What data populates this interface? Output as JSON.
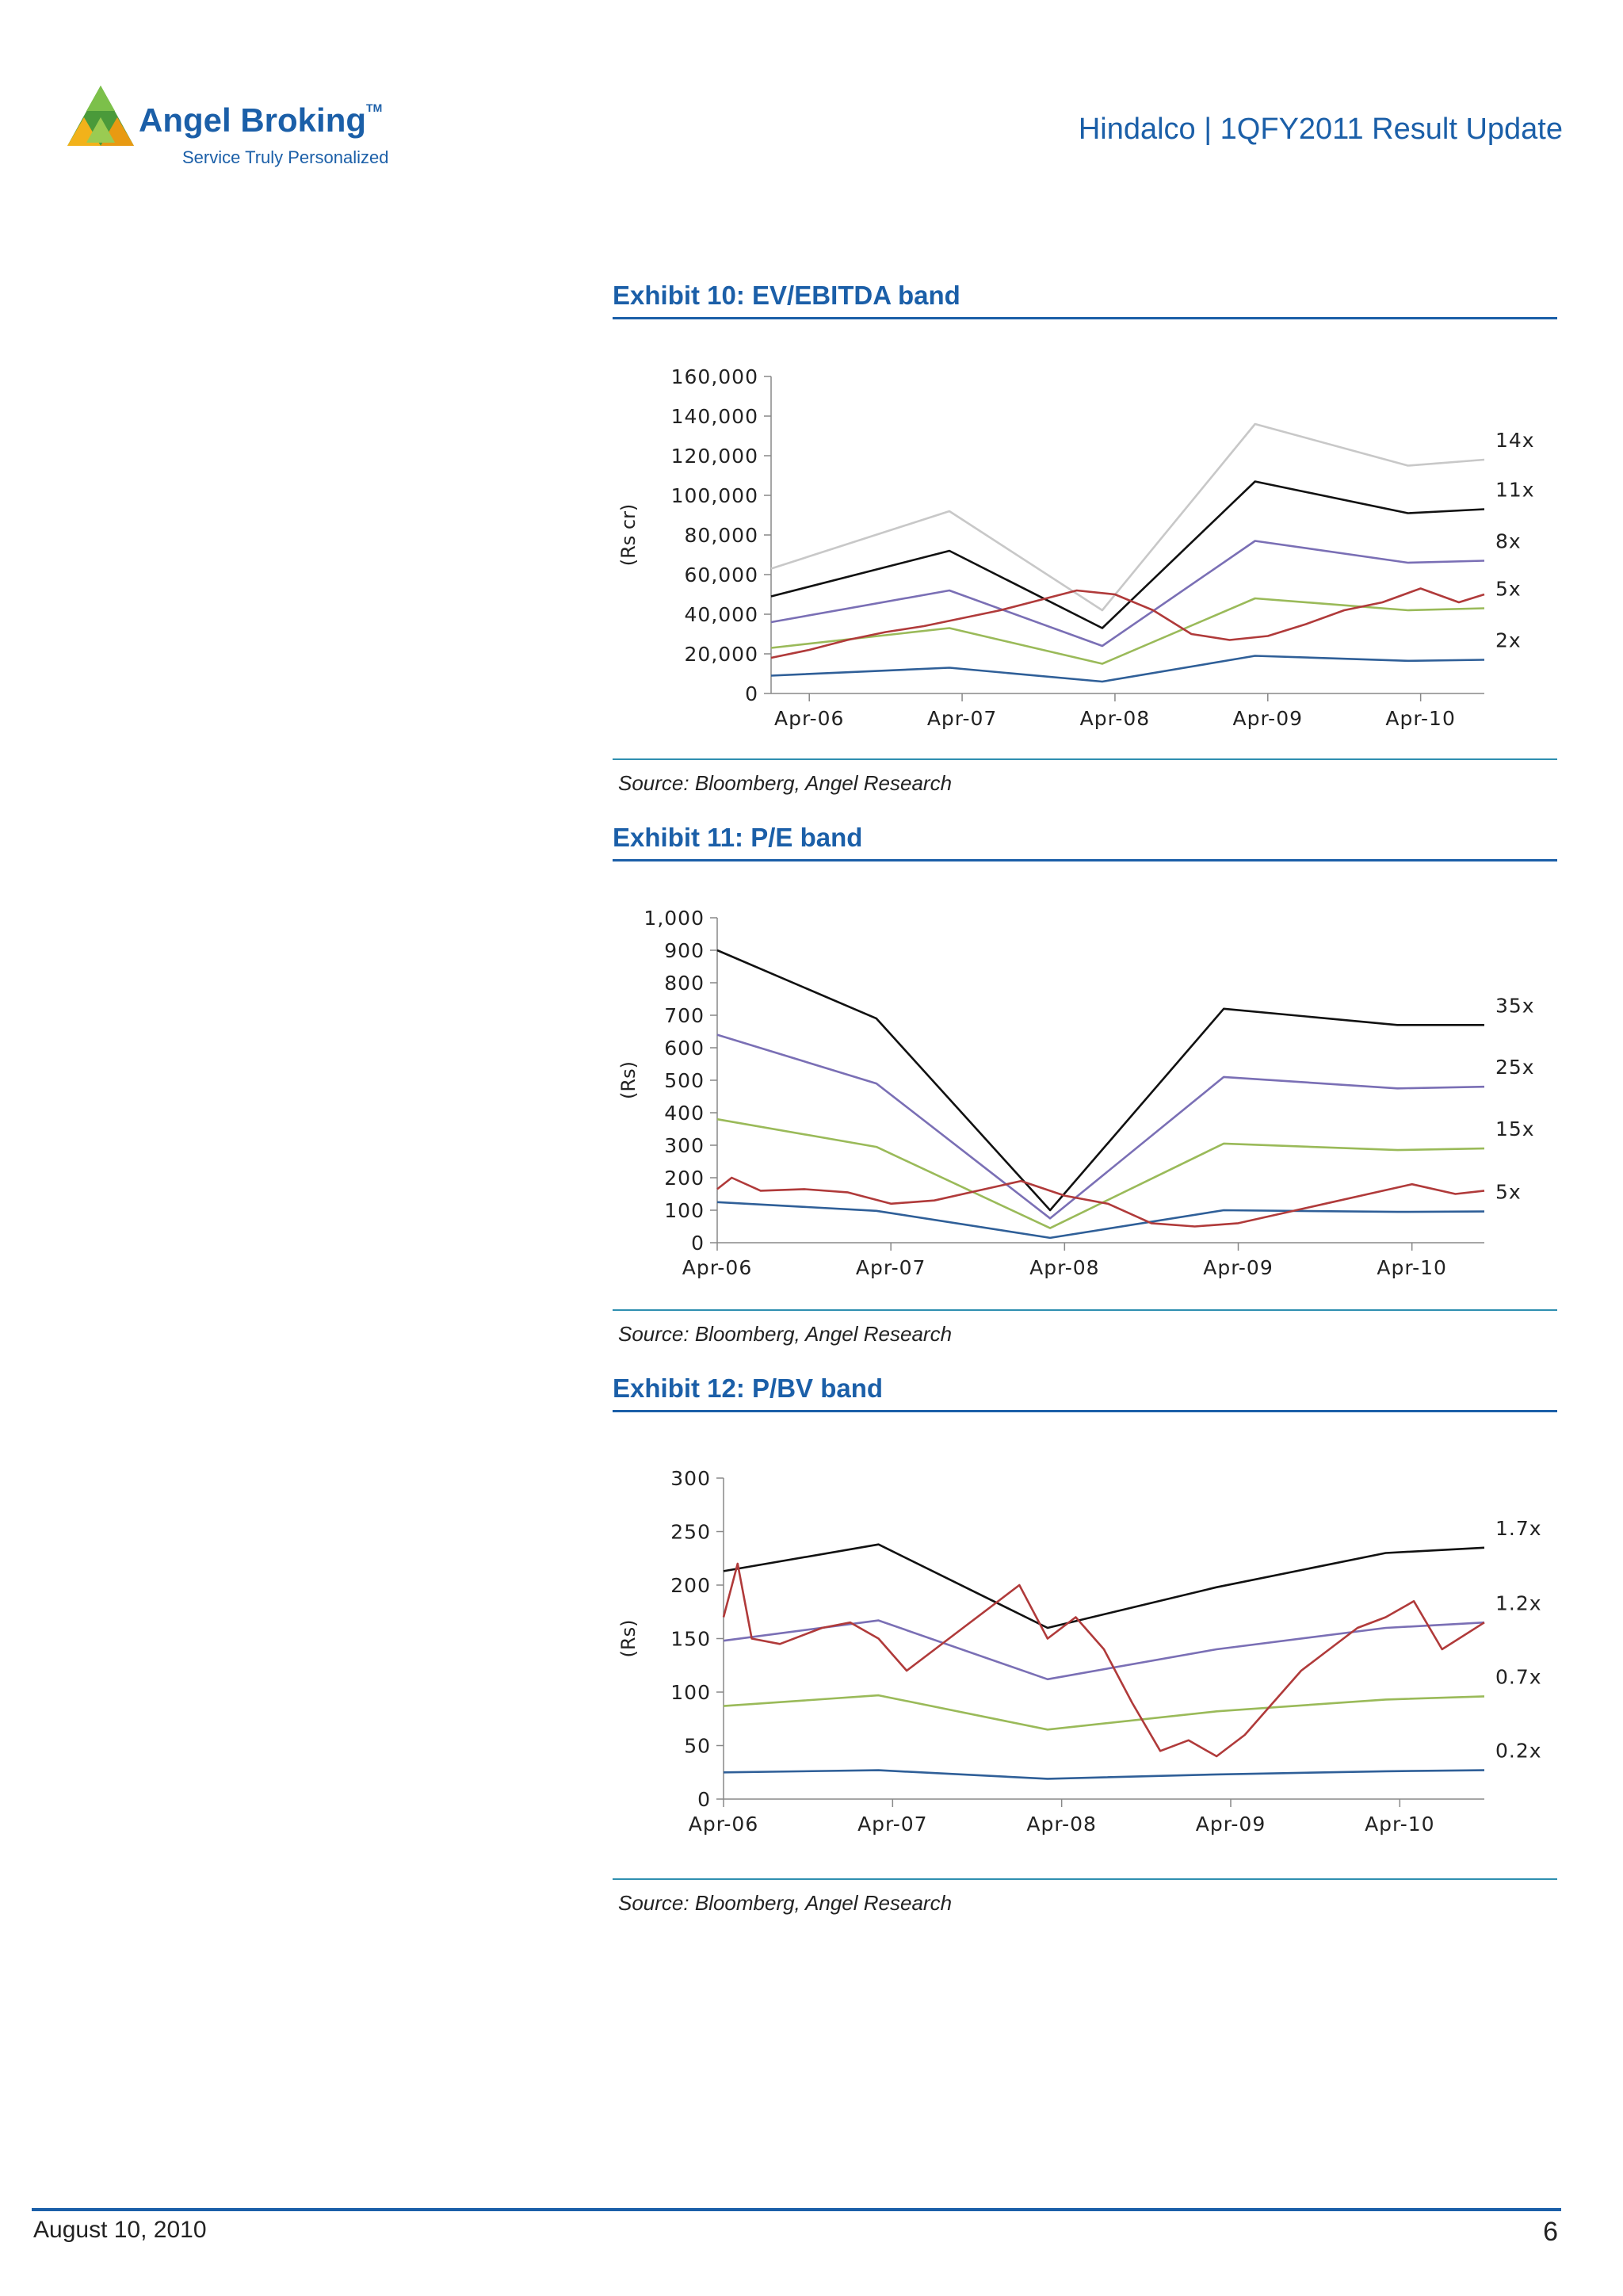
{
  "brand": {
    "name": "Angel Broking",
    "tm": "TM",
    "tagline": "Service Truly Personalized",
    "color": "#1b5fa8"
  },
  "header": {
    "title": "Hindalco | 1QFY2011 Result Update"
  },
  "footer": {
    "date": "August 10, 2010",
    "page": "6"
  },
  "exhibits": [
    {
      "title": "Exhibit 10: EV/EBITDA band",
      "source": "Source: Bloomberg, Angel Research"
    },
    {
      "title": "Exhibit 11: P/E band",
      "source": "Source: Bloomberg, Angel Research"
    },
    {
      "title": "Exhibit 12: P/BV band",
      "source": "Source: Bloomberg, Angel Research"
    }
  ],
  "chart_data": [
    {
      "type": "line",
      "ylabel": "(Rs cr)",
      "ylim": [
        0,
        160000
      ],
      "yticks": [
        0,
        20000,
        40000,
        60000,
        80000,
        100000,
        120000,
        140000,
        160000
      ],
      "ytick_labels": [
        "0",
        "20,000",
        "40,000",
        "60,000",
        "80,000",
        "100,000",
        "120,000",
        "140,000",
        "160,000"
      ],
      "xlim": [
        "2006-01",
        "2010-09"
      ],
      "xticks": [
        "2006-04",
        "2007-04",
        "2008-04",
        "2009-04",
        "2010-04"
      ],
      "xtick_labels": [
        "Apr-06",
        "Apr-07",
        "Apr-08",
        "Apr-09",
        "Apr-10"
      ],
      "grid": false,
      "series": [
        {
          "name": "14x",
          "color": "#c8c8c8",
          "x": [
            "2006-01",
            "2007-03",
            "2008-03",
            "2009-03",
            "2010-03",
            "2010-09"
          ],
          "y": [
            63000,
            92000,
            42000,
            136000,
            115000,
            118000
          ]
        },
        {
          "name": "11x",
          "color": "#111111",
          "x": [
            "2006-01",
            "2007-03",
            "2008-03",
            "2009-03",
            "2010-03",
            "2010-09"
          ],
          "y": [
            49000,
            72000,
            33000,
            107000,
            91000,
            93000
          ]
        },
        {
          "name": "8x",
          "color": "#7a6fb5",
          "x": [
            "2006-01",
            "2007-03",
            "2008-03",
            "2009-03",
            "2010-03",
            "2010-09"
          ],
          "y": [
            36000,
            52000,
            24000,
            77000,
            66000,
            67000
          ]
        },
        {
          "name": "5x",
          "color": "#9aba59",
          "x": [
            "2006-01",
            "2007-03",
            "2008-03",
            "2009-03",
            "2010-03",
            "2010-09"
          ],
          "y": [
            23000,
            33000,
            15000,
            48000,
            42000,
            43000
          ]
        },
        {
          "name": "2x",
          "color": "#2f5f98",
          "x": [
            "2006-01",
            "2007-03",
            "2008-03",
            "2009-03",
            "2010-03",
            "2010-09"
          ],
          "y": [
            9000,
            13000,
            6000,
            19000,
            16500,
            17000
          ]
        },
        {
          "name": "",
          "color": "#b03a3a",
          "x": [
            "2006-01",
            "2006-04",
            "2006-07",
            "2006-10",
            "2007-01",
            "2007-04",
            "2007-07",
            "2007-10",
            "2008-01",
            "2008-04",
            "2008-07",
            "2008-10",
            "2009-01",
            "2009-04",
            "2009-07",
            "2009-10",
            "2010-01",
            "2010-04",
            "2010-07",
            "2010-09"
          ],
          "y": [
            18000,
            22000,
            27000,
            31000,
            34000,
            38000,
            42000,
            47000,
            52000,
            50000,
            42000,
            30000,
            27000,
            29000,
            35000,
            42000,
            46000,
            53000,
            46000,
            50000
          ]
        }
      ]
    },
    {
      "type": "line",
      "ylabel": "(Rs)",
      "ylim": [
        0,
        1000
      ],
      "yticks": [
        0,
        100,
        200,
        300,
        400,
        500,
        600,
        700,
        800,
        900,
        1000
      ],
      "ytick_labels": [
        "0",
        "100",
        "200",
        "300",
        "400",
        "500",
        "600",
        "700",
        "800",
        "900",
        "1,000"
      ],
      "xlim": [
        "2006-04",
        "2010-09"
      ],
      "xticks": [
        "2006-04",
        "2007-04",
        "2008-04",
        "2009-04",
        "2010-04"
      ],
      "xtick_labels": [
        "Apr-06",
        "Apr-07",
        "Apr-08",
        "Apr-09",
        "Apr-10"
      ],
      "grid": false,
      "series": [
        {
          "name": "35x",
          "color": "#111111",
          "x": [
            "2006-04",
            "2007-03",
            "2008-03",
            "2009-03",
            "2010-03",
            "2010-09"
          ],
          "y": [
            900,
            690,
            100,
            720,
            670,
            670
          ]
        },
        {
          "name": "25x",
          "color": "#7a6fb5",
          "x": [
            "2006-04",
            "2007-03",
            "2008-03",
            "2009-03",
            "2010-03",
            "2010-09"
          ],
          "y": [
            640,
            490,
            75,
            510,
            475,
            480
          ]
        },
        {
          "name": "15x",
          "color": "#9aba59",
          "x": [
            "2006-04",
            "2007-03",
            "2008-03",
            "2009-03",
            "2010-03",
            "2010-09"
          ],
          "y": [
            380,
            295,
            45,
            305,
            285,
            290
          ]
        },
        {
          "name": "5x",
          "color": "#2f5f98",
          "x": [
            "2006-04",
            "2007-03",
            "2008-03",
            "2009-03",
            "2010-03",
            "2010-09"
          ],
          "y": [
            125,
            98,
            15,
            100,
            95,
            96
          ]
        },
        {
          "name": "",
          "color": "#b03a3a",
          "x": [
            "2006-04",
            "2006-05",
            "2006-07",
            "2006-10",
            "2007-01",
            "2007-04",
            "2007-07",
            "2007-10",
            "2008-01",
            "2008-04",
            "2008-07",
            "2008-10",
            "2009-01",
            "2009-04",
            "2009-07",
            "2009-10",
            "2010-01",
            "2010-04",
            "2010-07",
            "2010-09"
          ],
          "y": [
            165,
            200,
            160,
            165,
            155,
            120,
            130,
            160,
            190,
            145,
            120,
            60,
            50,
            60,
            90,
            120,
            150,
            180,
            150,
            160
          ]
        }
      ]
    },
    {
      "type": "line",
      "ylabel": "(Rs)",
      "ylim": [
        0,
        300
      ],
      "yticks": [
        0,
        50,
        100,
        150,
        200,
        250,
        300
      ],
      "ytick_labels": [
        "0",
        "50",
        "100",
        "150",
        "200",
        "250",
        "300"
      ],
      "xlim": [
        "2006-04",
        "2010-10"
      ],
      "xticks": [
        "2006-04",
        "2007-04",
        "2008-04",
        "2009-04",
        "2010-04"
      ],
      "xtick_labels": [
        "Apr-06",
        "Apr-07",
        "Apr-08",
        "Apr-09",
        "Apr-10"
      ],
      "grid": false,
      "series": [
        {
          "name": "1.7x",
          "color": "#111111",
          "x": [
            "2006-04",
            "2007-03",
            "2008-03",
            "2009-03",
            "2010-03",
            "2010-10"
          ],
          "y": [
            213,
            238,
            160,
            198,
            230,
            235
          ]
        },
        {
          "name": "1.2x",
          "color": "#7a6fb5",
          "x": [
            "2006-04",
            "2007-03",
            "2008-03",
            "2009-03",
            "2010-03",
            "2010-10"
          ],
          "y": [
            148,
            167,
            112,
            140,
            160,
            165
          ]
        },
        {
          "name": "0.7x",
          "color": "#9aba59",
          "x": [
            "2006-04",
            "2007-03",
            "2008-03",
            "2009-03",
            "2010-03",
            "2010-10"
          ],
          "y": [
            87,
            97,
            65,
            82,
            93,
            96
          ]
        },
        {
          "name": "0.2x",
          "color": "#2f5f98",
          "x": [
            "2006-04",
            "2007-03",
            "2008-03",
            "2009-03",
            "2010-03",
            "2010-10"
          ],
          "y": [
            25,
            27,
            19,
            23,
            26,
            27
          ]
        },
        {
          "name": "",
          "color": "#b03a3a",
          "x": [
            "2006-04",
            "2006-05",
            "2006-06",
            "2006-08",
            "2006-11",
            "2007-01",
            "2007-03",
            "2007-05",
            "2007-07",
            "2007-09",
            "2007-11",
            "2008-01",
            "2008-03",
            "2008-05",
            "2008-07",
            "2008-09",
            "2008-11",
            "2009-01",
            "2009-03",
            "2009-05",
            "2009-07",
            "2009-09",
            "2009-11",
            "2010-01",
            "2010-03",
            "2010-05",
            "2010-07",
            "2010-10"
          ],
          "y": [
            170,
            220,
            150,
            145,
            160,
            165,
            150,
            120,
            140,
            160,
            180,
            200,
            150,
            170,
            140,
            90,
            45,
            55,
            40,
            60,
            90,
            120,
            140,
            160,
            170,
            185,
            140,
            165
          ]
        }
      ]
    }
  ]
}
